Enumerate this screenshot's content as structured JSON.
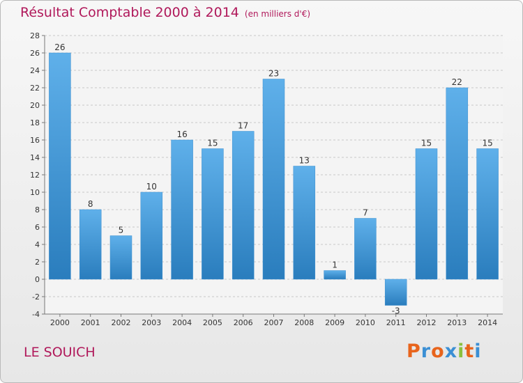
{
  "title": "Résultat Comptable 2000 à 2014",
  "unit": "(en milliers d'€)",
  "commune": "LE SOUICH",
  "logo": {
    "text": "Proxiti",
    "colors": [
      "#e8641c",
      "#3b8fd4",
      "#e8641c",
      "#3b8fd4",
      "#8ac03e",
      "#e8641c",
      "#3b8fd4"
    ]
  },
  "colors": {
    "title": "#b0185a",
    "bar_light": "#5fb0ea",
    "bar_dark": "#2a7dbd"
  },
  "chart_data": {
    "type": "bar",
    "categories": [
      "2000",
      "2001",
      "2002",
      "2003",
      "2004",
      "2005",
      "2006",
      "2007",
      "2008",
      "2009",
      "2010",
      "2011",
      "2012",
      "2013",
      "2014"
    ],
    "values": [
      26,
      8,
      5,
      10,
      16,
      15,
      17,
      23,
      13,
      1,
      7,
      -3,
      15,
      22,
      15
    ],
    "ylim": [
      -4,
      28
    ],
    "yticks": [
      -4,
      -2,
      0,
      2,
      4,
      6,
      8,
      10,
      12,
      14,
      16,
      18,
      20,
      22,
      24,
      26,
      28
    ],
    "grid": true
  }
}
